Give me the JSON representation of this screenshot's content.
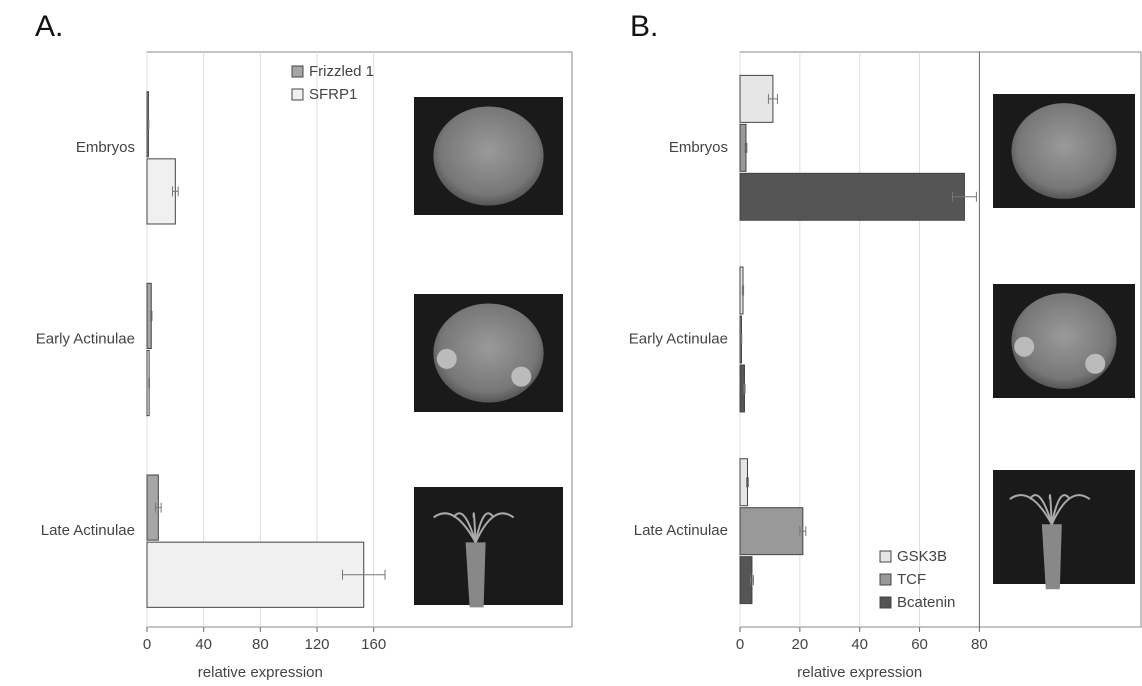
{
  "chart_data": [
    {
      "type": "hbar",
      "title": "A.",
      "xlabel": "relative expression",
      "categories": [
        "Embryos",
        "Early Actinulae",
        "Late Actinulae"
      ],
      "series": [
        {
          "name": "Frizzled 1",
          "color": "#a6a6a6",
          "values": [
            1,
            3,
            8
          ],
          "errors": [
            0.3,
            0.5,
            2
          ]
        },
        {
          "name": "SFRP1",
          "color": "#f0f0f0",
          "values": [
            20,
            1.5,
            153
          ],
          "errors": [
            2,
            0.3,
            15
          ]
        }
      ],
      "xlim": [
        0,
        300
      ],
      "xticks": [
        0,
        40,
        80,
        120,
        160
      ],
      "grid": true,
      "legend": "upper center"
    },
    {
      "type": "hbar",
      "title": "B.",
      "xlabel": "relative expression",
      "categories": [
        "Embryos",
        "Early Actinulae",
        "Late Actinulae"
      ],
      "series": [
        {
          "name": "GSK3B",
          "color": "#e6e6e6",
          "values": [
            11,
            1,
            2.5
          ],
          "errors": [
            1.5,
            0.2,
            0.3
          ]
        },
        {
          "name": "TCF",
          "color": "#999999",
          "values": [
            2,
            0.5,
            21
          ],
          "errors": [
            0.3,
            0.1,
            1
          ]
        },
        {
          "name": "Bcatenin",
          "color": "#555555",
          "values": [
            75,
            1.5,
            4
          ],
          "errors": [
            4,
            0.2,
            0.5
          ]
        }
      ],
      "xlim": [
        0,
        134
      ],
      "xticks": [
        0,
        20,
        40,
        60,
        80
      ],
      "grid": true,
      "legend": "lower right"
    }
  ]
}
